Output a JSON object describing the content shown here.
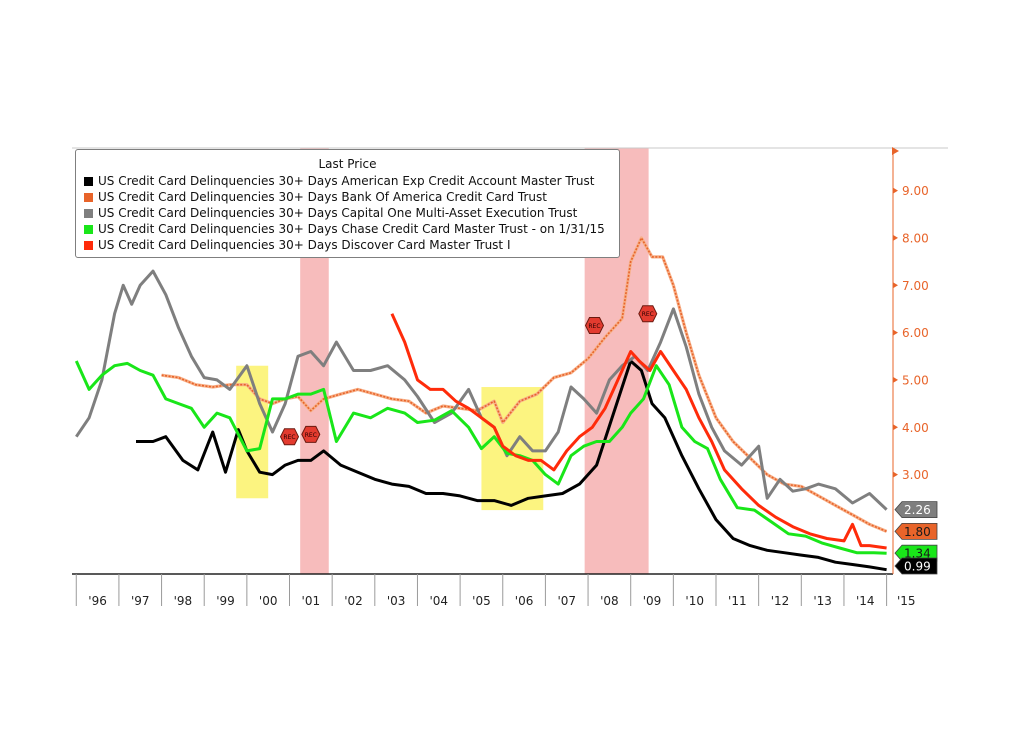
{
  "chart_data": {
    "type": "line",
    "legend_title": "Last Price",
    "legend_position": "top-left",
    "x_tick_labels": [
      "'96",
      "'97",
      "'98",
      "'99",
      "'00",
      "'01",
      "'02",
      "'03",
      "'04",
      "'05",
      "'06",
      "'07",
      "'08",
      "'09",
      "'10",
      "'11",
      "'12",
      "'13",
      "'14",
      "'15"
    ],
    "y_tick_labels": [
      "3.00",
      "4.00",
      "5.00",
      "6.00",
      "7.00",
      "8.00",
      "9.00"
    ],
    "ylim": [
      0.9,
      9.9
    ],
    "xlim": [
      1995.9,
      2015.15
    ],
    "recession_shading": [
      [
        2001.25,
        2001.92
      ],
      [
        2007.92,
        2009.42
      ]
    ],
    "highlight_boxes": [
      {
        "x": [
          1999.75,
          2000.5
        ],
        "y": [
          2.5,
          5.3
        ]
      },
      {
        "x": [
          2005.5,
          2006.95
        ],
        "y": [
          2.25,
          4.85
        ]
      }
    ],
    "recession_markers": [
      {
        "label": "REC",
        "x": 2001.0,
        "y": 3.8
      },
      {
        "label": "REC",
        "x": 2001.5,
        "y": 3.85
      },
      {
        "label": "REC",
        "x": 2008.15,
        "y": 6.15
      },
      {
        "label": "REC",
        "x": 2009.4,
        "y": 6.4
      }
    ],
    "last_values": [
      {
        "label": "2.26",
        "series": "US Credit Card Delinquencies 30+ Days Capital One Multi-Asset Execution Trust",
        "color": "#7f7f7f"
      },
      {
        "label": "1.80",
        "series": "US Credit Card Delinquencies 30+ Days Bank Of America Credit Card Trust",
        "color": "#e8642a"
      },
      {
        "label": "1.34",
        "series": "US Credit Card Delinquencies 30+ Days Chase Credit Card Master Trust -  on 1/31/15",
        "color": "#19e619"
      },
      {
        "label": "0.99",
        "series": "US Credit Card Delinquencies 30+ Days American Exp Credit Account Master Trust",
        "color": "#000000"
      }
    ],
    "series": [
      {
        "name": "US Credit Card Delinquencies 30+ Days American Exp Credit Account Master Trust",
        "color": "#000000",
        "x": [
          1997.4,
          1997.8,
          1998.1,
          1998.5,
          1998.85,
          1999.2,
          1999.5,
          1999.8,
          2000.0,
          2000.3,
          2000.6,
          2000.9,
          2001.2,
          2001.5,
          2001.8,
          2002.2,
          2002.6,
          2003.0,
          2003.4,
          2003.8,
          2004.2,
          2004.6,
          2005.0,
          2005.4,
          2005.8,
          2006.2,
          2006.6,
          2007.0,
          2007.4,
          2007.8,
          2008.2,
          2008.6,
          2009.0,
          2009.25,
          2009.5,
          2009.8,
          2010.2,
          2010.6,
          2011.0,
          2011.4,
          2011.8,
          2012.2,
          2012.6,
          2013.0,
          2013.4,
          2013.8,
          2014.2,
          2014.6,
          2015.0
        ],
        "values": [
          3.7,
          3.7,
          3.8,
          3.3,
          3.1,
          3.9,
          3.05,
          3.95,
          3.5,
          3.05,
          3.0,
          3.2,
          3.3,
          3.3,
          3.5,
          3.2,
          3.05,
          2.9,
          2.8,
          2.75,
          2.6,
          2.6,
          2.55,
          2.45,
          2.45,
          2.35,
          2.5,
          2.55,
          2.6,
          2.8,
          3.2,
          4.3,
          5.4,
          5.2,
          4.5,
          4.2,
          3.4,
          2.7,
          2.05,
          1.65,
          1.5,
          1.4,
          1.35,
          1.3,
          1.25,
          1.15,
          1.1,
          1.05,
          0.99
        ]
      },
      {
        "name": "US Credit Card Delinquencies 30+ Days Bank Of America Credit Card Trust",
        "color": "#e8642a",
        "x": [
          1998.0,
          1998.4,
          1998.8,
          1999.2,
          1999.6,
          2000.0,
          2000.3,
          2000.6,
          2000.9,
          2001.2,
          2001.5,
          2001.8,
          2002.2,
          2002.6,
          2003.0,
          2003.4,
          2003.8,
          2004.2,
          2004.6,
          2005.0,
          2005.4,
          2005.8,
          2006.0,
          2006.4,
          2006.8,
          2007.2,
          2007.6,
          2008.0,
          2008.4,
          2008.8,
          2009.0,
          2009.25,
          2009.5,
          2009.75,
          2010.0,
          2010.3,
          2010.6,
          2011.0,
          2011.4,
          2011.8,
          2012.2,
          2012.6,
          2013.0,
          2013.4,
          2013.8,
          2014.2,
          2014.6,
          2015.0
        ],
        "values": [
          5.1,
          5.05,
          4.9,
          4.85,
          4.9,
          4.9,
          4.6,
          4.5,
          4.6,
          4.65,
          4.35,
          4.6,
          4.7,
          4.8,
          4.7,
          4.6,
          4.55,
          4.3,
          4.45,
          4.4,
          4.35,
          4.55,
          4.1,
          4.55,
          4.7,
          5.05,
          5.15,
          5.45,
          5.9,
          6.3,
          7.5,
          8.0,
          7.6,
          7.6,
          7.0,
          6.0,
          5.1,
          4.2,
          3.7,
          3.35,
          3.0,
          2.8,
          2.75,
          2.55,
          2.35,
          2.15,
          1.95,
          1.8
        ]
      },
      {
        "name": "US Credit Card Delinquencies 30+ Days Capital One Multi-Asset Execution Trust",
        "color": "#7f7f7f",
        "x": [
          1996.0,
          1996.3,
          1996.6,
          1996.9,
          1997.1,
          1997.3,
          1997.5,
          1997.8,
          1998.1,
          1998.4,
          1998.7,
          1999.0,
          1999.3,
          1999.6,
          2000.0,
          2000.3,
          2000.6,
          2000.9,
          2001.2,
          2001.5,
          2001.8,
          2002.1,
          2002.5,
          2002.9,
          2003.3,
          2003.7,
          2004.0,
          2004.4,
          2004.8,
          2005.2,
          2005.5,
          2005.8,
          2006.1,
          2006.4,
          2006.7,
          2007.0,
          2007.3,
          2007.6,
          2007.9,
          2008.2,
          2008.5,
          2008.8,
          2009.1,
          2009.4,
          2009.7,
          2010.0,
          2010.3,
          2010.6,
          2010.9,
          2011.2,
          2011.6,
          2012.0,
          2012.2,
          2012.5,
          2012.8,
          2013.1,
          2013.4,
          2013.8,
          2014.2,
          2014.6,
          2015.0
        ],
        "values": [
          3.8,
          4.2,
          5.0,
          6.4,
          7.0,
          6.6,
          7.0,
          7.3,
          6.8,
          6.1,
          5.5,
          5.05,
          5.0,
          4.8,
          5.3,
          4.5,
          3.9,
          4.5,
          5.5,
          5.6,
          5.3,
          5.8,
          5.2,
          5.2,
          5.3,
          5.0,
          4.65,
          4.1,
          4.3,
          4.8,
          4.2,
          4.0,
          3.4,
          3.8,
          3.5,
          3.5,
          3.9,
          4.85,
          4.6,
          4.3,
          5.0,
          5.3,
          5.5,
          5.2,
          5.8,
          6.5,
          5.7,
          4.7,
          4.0,
          3.5,
          3.2,
          3.6,
          2.5,
          2.9,
          2.65,
          2.7,
          2.8,
          2.7,
          2.4,
          2.6,
          2.26
        ]
      },
      {
        "name": "US Credit Card Delinquencies 30+ Days Chase Credit Card Master Trust -  on 1/31/15",
        "color": "#19e619",
        "x": [
          1996.0,
          1996.3,
          1996.6,
          1996.9,
          1997.2,
          1997.5,
          1997.8,
          1998.1,
          1998.4,
          1998.7,
          1999.0,
          1999.3,
          1999.6,
          2000.0,
          2000.3,
          2000.6,
          2000.9,
          2001.2,
          2001.5,
          2001.8,
          2002.1,
          2002.5,
          2002.9,
          2003.3,
          2003.7,
          2004.0,
          2004.4,
          2004.8,
          2005.2,
          2005.5,
          2005.8,
          2006.1,
          2006.4,
          2006.7,
          2007.0,
          2007.3,
          2007.6,
          2007.9,
          2008.2,
          2008.5,
          2008.8,
          2009.0,
          2009.3,
          2009.6,
          2009.9,
          2010.2,
          2010.5,
          2010.8,
          2011.1,
          2011.5,
          2011.9,
          2012.3,
          2012.7,
          2013.1,
          2013.5,
          2013.9,
          2014.3,
          2014.7,
          2015.0
        ],
        "values": [
          5.4,
          4.8,
          5.1,
          5.3,
          5.35,
          5.2,
          5.1,
          4.6,
          4.5,
          4.4,
          4.0,
          4.3,
          4.2,
          3.5,
          3.55,
          4.6,
          4.6,
          4.7,
          4.7,
          4.8,
          3.7,
          4.3,
          4.2,
          4.4,
          4.3,
          4.1,
          4.15,
          4.35,
          4.0,
          3.55,
          3.8,
          3.45,
          3.4,
          3.3,
          3.0,
          2.8,
          3.4,
          3.6,
          3.7,
          3.7,
          4.0,
          4.3,
          4.6,
          5.3,
          4.9,
          4.0,
          3.7,
          3.55,
          2.9,
          2.3,
          2.25,
          2.0,
          1.75,
          1.7,
          1.55,
          1.45,
          1.35,
          1.35,
          1.34
        ]
      },
      {
        "name": "US Credit Card Delinquencies 30+ Days Discover Card Master Trust I",
        "color": "#ff2b0a",
        "x": [
          2003.4,
          2003.7,
          2004.0,
          2004.3,
          2004.6,
          2004.9,
          2005.2,
          2005.5,
          2005.8,
          2006.0,
          2006.3,
          2006.6,
          2006.9,
          2007.2,
          2007.5,
          2007.8,
          2008.1,
          2008.4,
          2008.7,
          2009.0,
          2009.2,
          2009.45,
          2009.7,
          2010.0,
          2010.3,
          2010.6,
          2010.9,
          2011.2,
          2011.6,
          2012.0,
          2012.4,
          2012.8,
          2013.2,
          2013.6,
          2014.0,
          2014.2,
          2014.4,
          2014.6,
          2015.0
        ],
        "values": [
          6.4,
          5.8,
          5.0,
          4.8,
          4.8,
          4.55,
          4.4,
          4.2,
          4.0,
          3.6,
          3.4,
          3.3,
          3.3,
          3.1,
          3.5,
          3.8,
          4.0,
          4.4,
          5.0,
          5.6,
          5.4,
          5.2,
          5.6,
          5.2,
          4.8,
          4.2,
          3.7,
          3.1,
          2.7,
          2.35,
          2.1,
          1.9,
          1.75,
          1.65,
          1.6,
          1.95,
          1.5,
          1.5,
          1.45
        ]
      }
    ]
  }
}
